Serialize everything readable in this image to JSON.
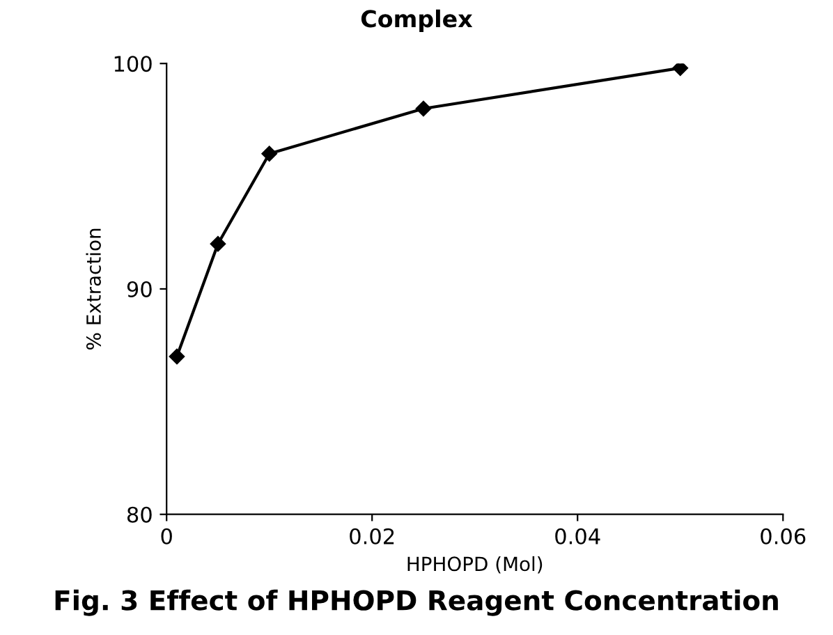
{
  "chart_data": {
    "type": "line",
    "title": "Complex",
    "xlabel": "HPHOPD (Mol)",
    "ylabel": "% Extraction",
    "x": [
      0.001,
      0.005,
      0.01,
      0.025,
      0.05
    ],
    "series": [
      {
        "color": "#000000",
        "values": [
          87,
          92,
          96,
          98,
          99.8
        ]
      }
    ],
    "xlim": [
      0,
      0.06
    ],
    "xticks": [
      0,
      0.02,
      0.04,
      0.06
    ],
    "ylim": [
      80,
      100
    ],
    "yticks": [
      80,
      90,
      100
    ],
    "marker": "diamond",
    "line_style": "solid",
    "grid": false,
    "legend": false,
    "annotations": [
      "Fig. 3 Effect of HPHOPD Reagent Concentration"
    ]
  }
}
